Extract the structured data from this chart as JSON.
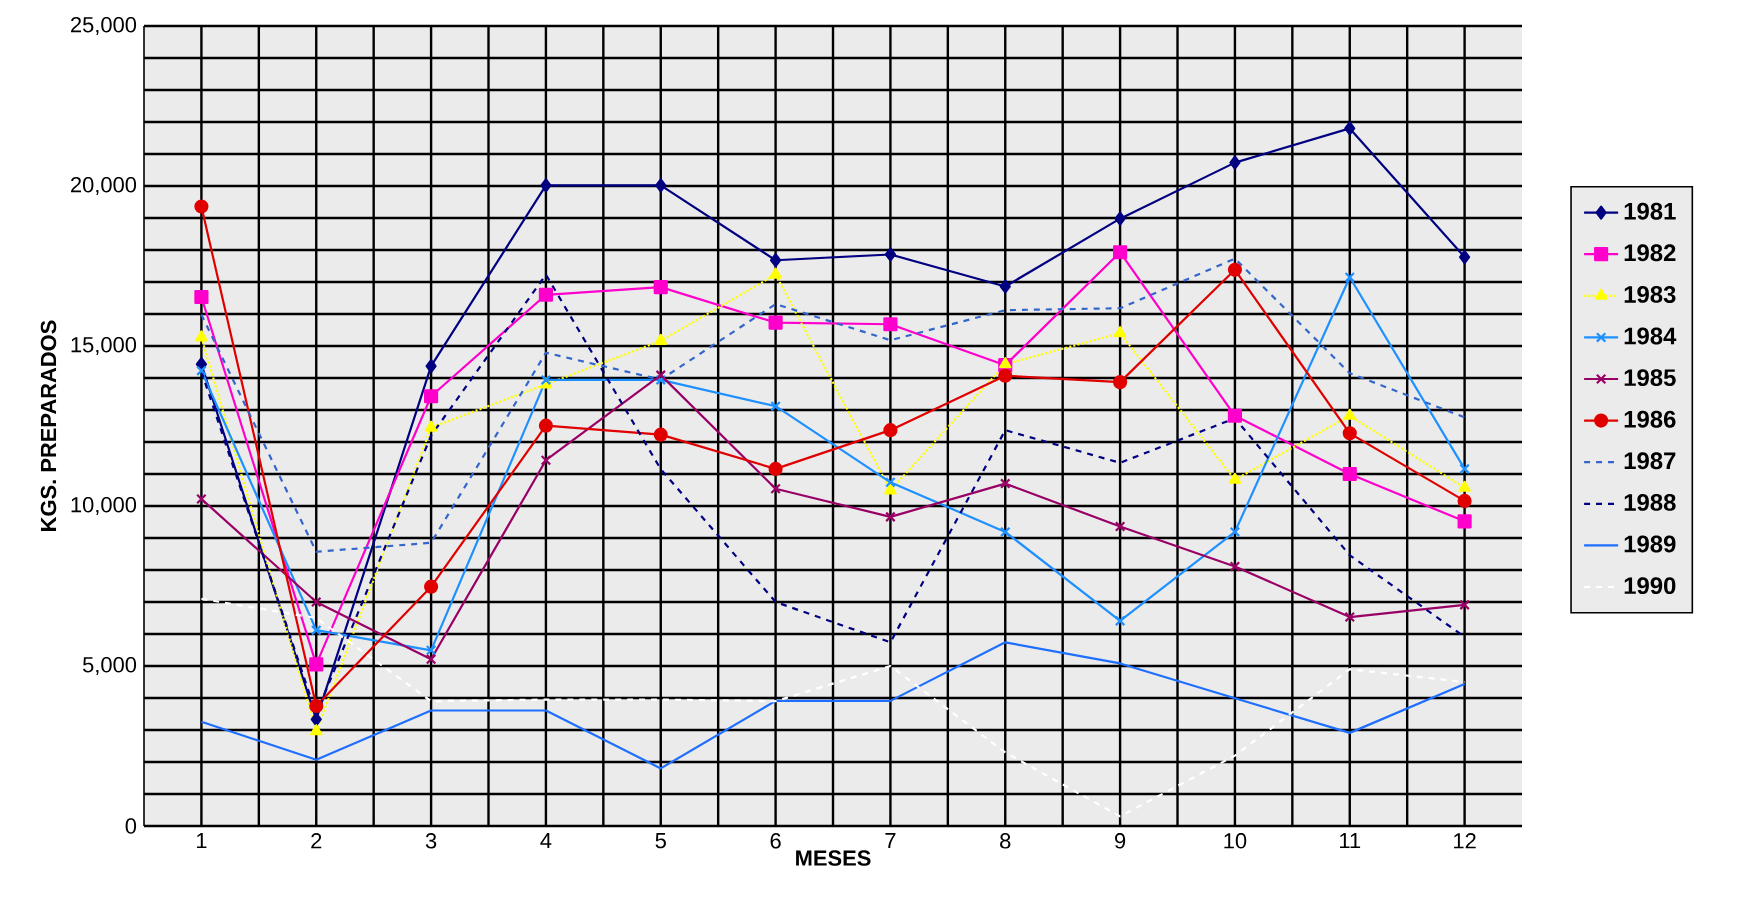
{
  "chart_data": {
    "type": "line",
    "xlabel": "MESES",
    "ylabel": "KGS. PREPARADOS",
    "categories": [
      "1",
      "2",
      "3",
      "4",
      "5",
      "6",
      "7",
      "8",
      "9",
      "10",
      "11",
      "12"
    ],
    "ylim": [
      0,
      25000
    ],
    "yticks": [
      0,
      {
        "value": 1000,
        "label": null
      },
      {
        "value": 2000,
        "label": null
      },
      {
        "value": 3000,
        "label": null
      },
      {
        "value": 4000,
        "label": null
      },
      {
        "value": 5000,
        "label": "5,000"
      },
      {
        "value": 6000,
        "label": null
      },
      {
        "value": 7000,
        "label": null
      },
      {
        "value": 8000,
        "label": null
      },
      {
        "value": 9000,
        "label": null
      },
      {
        "value": 10000,
        "label": "10,000"
      },
      {
        "value": 11000,
        "label": null
      },
      {
        "value": 12000,
        "label": null
      },
      {
        "value": 13000,
        "label": null
      },
      {
        "value": 14000,
        "label": null
      },
      {
        "value": 15000,
        "label": "15,000"
      },
      {
        "value": 16000,
        "label": null
      },
      {
        "value": 17000,
        "label": null
      },
      {
        "value": 18000,
        "label": null
      },
      {
        "value": 19000,
        "label": null
      },
      {
        "value": 20000,
        "label": "20,000"
      },
      {
        "value": 21000,
        "label": null
      },
      {
        "value": 22000,
        "label": null
      },
      {
        "value": 23000,
        "label": null
      },
      {
        "value": 24000,
        "label": null
      },
      {
        "value": 25000,
        "label": "25,000"
      }
    ],
    "grid": true,
    "legend": "right",
    "series": [
      {
        "name": "1981",
        "color": "#000080",
        "marker": "diamond",
        "line_style": "solid",
        "values": [
          14430,
          3330,
          14370,
          20020,
          20020,
          17680,
          17860,
          16860,
          18980,
          20730,
          21800,
          17780
        ]
      },
      {
        "name": "1982",
        "color": "#ff00cc",
        "marker": "square",
        "line_style": "solid",
        "values": [
          16530,
          5050,
          13430,
          16600,
          16840,
          15730,
          15680,
          14400,
          17930,
          12820,
          11000,
          9520
        ]
      },
      {
        "name": "1983",
        "color": "#ffff00",
        "marker": "triangle",
        "line_style": "dotted",
        "values": [
          15270,
          2960,
          12450,
          13800,
          15160,
          17230,
          10490,
          14430,
          15400,
          10820,
          12820,
          10570
        ]
      },
      {
        "name": "1984",
        "color": "#1e90ff",
        "marker": "cross",
        "line_style": "solid",
        "values": [
          14230,
          6120,
          5490,
          13940,
          13940,
          13120,
          10740,
          9190,
          6410,
          9190,
          17150,
          11160
        ]
      },
      {
        "name": "1985",
        "color": "#990066",
        "marker": "cross",
        "line_style": "solid",
        "values": [
          10220,
          7000,
          5210,
          11430,
          14090,
          10540,
          9660,
          10700,
          9360,
          8110,
          6530,
          6910
        ]
      },
      {
        "name": "1986",
        "color": "#e00000",
        "marker": "circle",
        "line_style": "solid",
        "values": [
          19360,
          3750,
          7480,
          12510,
          12230,
          11160,
          12370,
          14070,
          13870,
          17380,
          12270,
          10160
        ]
      },
      {
        "name": "1987",
        "color": "#3366cc",
        "marker": "none",
        "line_style": "dashed",
        "values": [
          15980,
          8570,
          8850,
          14790,
          13950,
          16310,
          15180,
          16120,
          16180,
          17730,
          14150,
          12770
        ]
      },
      {
        "name": "1988",
        "color": "#000080",
        "marker": "none",
        "line_style": "dashed",
        "values": [
          14200,
          3500,
          12200,
          17230,
          11150,
          7000,
          5740,
          12370,
          11350,
          12740,
          8460,
          5910
        ]
      },
      {
        "name": "1989",
        "color": "#1e6fff",
        "marker": "none",
        "line_style": "solid",
        "values": [
          3260,
          2070,
          3610,
          3610,
          1800,
          3910,
          3910,
          5740,
          5080,
          3990,
          2910,
          4440
        ]
      },
      {
        "name": "1990",
        "color": "#ffffff",
        "marker": "none",
        "line_style": "dashed",
        "values": [
          7100,
          6500,
          3900,
          3950,
          3950,
          3900,
          5000,
          2300,
          300,
          2200,
          4900,
          4500
        ]
      }
    ]
  }
}
